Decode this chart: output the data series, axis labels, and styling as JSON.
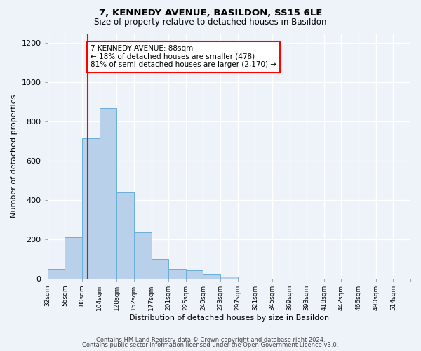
{
  "title": "7, KENNEDY AVENUE, BASILDON, SS15 6LE",
  "subtitle": "Size of property relative to detached houses in Basildon",
  "xlabel": "Distribution of detached houses by size in Basildon",
  "ylabel": "Number of detached properties",
  "bin_labels": [
    "32sqm",
    "56sqm",
    "80sqm",
    "104sqm",
    "128sqm",
    "152sqm",
    "177sqm",
    "201sqm",
    "225sqm",
    "249sqm",
    "273sqm",
    "297sqm",
    "321sqm",
    "345sqm",
    "369sqm",
    "393sqm",
    "418sqm",
    "442sqm",
    "466sqm",
    "490sqm",
    "514sqm"
  ],
  "bar_heights": [
    50,
    210,
    715,
    870,
    440,
    235,
    100,
    50,
    40,
    20,
    10,
    0,
    0,
    0,
    0,
    0,
    0,
    0,
    0,
    0,
    0
  ],
  "bar_color": "#b8d0ea",
  "bar_edge_color": "#6aaed6",
  "vline_color": "red",
  "annotation_text": "7 KENNEDY AVENUE: 88sqm\n← 18% of detached houses are smaller (478)\n81% of semi-detached houses are larger (2,170) →",
  "annotation_box_color": "white",
  "annotation_box_edge": "red",
  "ylim": [
    0,
    1250
  ],
  "yticks": [
    0,
    200,
    400,
    600,
    800,
    1000,
    1200
  ],
  "background_color": "#eef2f9",
  "plot_bg_color": "#eef2f9",
  "footer_line1": "Contains HM Land Registry data © Crown copyright and database right 2024.",
  "footer_line2": "Contains public sector information licensed under the Open Government Licence v3.0.",
  "grid_color": "white",
  "vline_sqm": 88,
  "bin_sqm_edges": [
    32,
    56,
    80,
    104,
    128,
    152,
    177,
    201,
    225,
    249,
    273,
    297,
    321,
    345,
    369,
    393,
    418,
    442,
    466,
    490,
    514,
    538
  ]
}
